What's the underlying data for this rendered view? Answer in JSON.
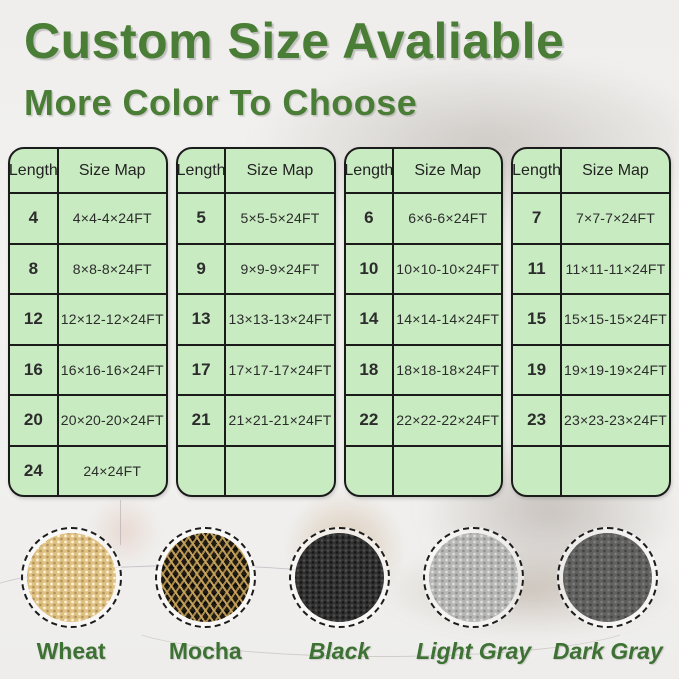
{
  "page": {
    "title": "Custom Size Avaliable",
    "subtitle": "More Color To Choose"
  },
  "colors": {
    "heading_green": "#4a7d35",
    "label_green": "#3e7234",
    "table_background": "#c9ebc2",
    "table_border": "#1b1b1b",
    "swatch_wheat": "#e0c184",
    "swatch_mocha_dark": "#201c14",
    "swatch_mocha_gold": "#c9a55d",
    "swatch_black": "#313131",
    "swatch_light_gray": "#b7b7b5",
    "swatch_dark_gray": "#616160"
  },
  "tables": [
    {
      "headers": [
        "Length",
        "Size Map"
      ],
      "rows": [
        [
          "4",
          "4×4-4×24FT"
        ],
        [
          "8",
          "8×8-8×24FT"
        ],
        [
          "12",
          "12×12-12×24FT"
        ],
        [
          "16",
          "16×16-16×24FT"
        ],
        [
          "20",
          "20×20-20×24FT"
        ],
        [
          "24",
          "24×24FT"
        ]
      ]
    },
    {
      "headers": [
        "Length",
        "Size Map"
      ],
      "rows": [
        [
          "5",
          "5×5-5×24FT"
        ],
        [
          "9",
          "9×9-9×24FT"
        ],
        [
          "13",
          "13×13-13×24FT"
        ],
        [
          "17",
          "17×17-17×24FT"
        ],
        [
          "21",
          "21×21-21×24FT"
        ],
        [
          "",
          ""
        ]
      ]
    },
    {
      "headers": [
        "Length",
        "Size Map"
      ],
      "rows": [
        [
          "6",
          "6×6-6×24FT"
        ],
        [
          "10",
          "10×10-10×24FT"
        ],
        [
          "14",
          "14×14-14×24FT"
        ],
        [
          "18",
          "18×18-18×24FT"
        ],
        [
          "22",
          "22×22-22×24FT"
        ],
        [
          "",
          ""
        ]
      ]
    },
    {
      "headers": [
        "Length",
        "Size Map"
      ],
      "rows": [
        [
          "7",
          "7×7-7×24FT"
        ],
        [
          "11",
          "11×11-11×24FT"
        ],
        [
          "15",
          "15×15-15×24FT"
        ],
        [
          "19",
          "19×19-19×24FT"
        ],
        [
          "23",
          "23×23-23×24FT"
        ],
        [
          "",
          ""
        ]
      ]
    }
  ],
  "swatches": [
    {
      "label": "Wheat",
      "style": "wheat",
      "italic": false
    },
    {
      "label": "Mocha",
      "style": "mocha",
      "italic": false
    },
    {
      "label": "Black",
      "style": "black",
      "italic": true
    },
    {
      "label": "Light Gray",
      "style": "light-gray",
      "italic": true
    },
    {
      "label": "Dark Gray",
      "style": "dark-gray",
      "italic": true
    }
  ]
}
